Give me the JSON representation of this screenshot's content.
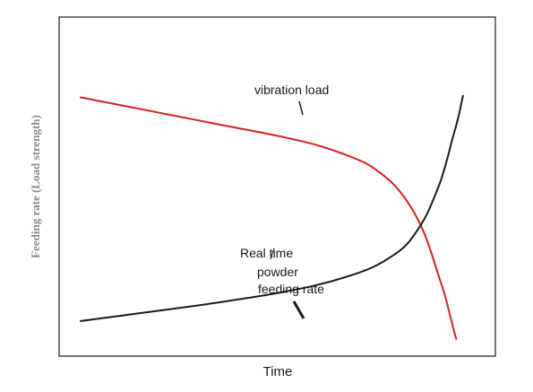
{
  "chart_data": {
    "type": "line",
    "title": "",
    "xlabel": "Time",
    "ylabel": "Feeding rate (Load strength)",
    "xlim": [
      0,
      100
    ],
    "ylim": [
      0,
      100
    ],
    "grid": false,
    "axis_ticks": false,
    "series": [
      {
        "name": "vibration load",
        "color": "#d42020",
        "x": [
          0,
          10,
          20,
          30,
          40,
          50,
          60,
          70,
          75,
          80,
          84,
          87,
          89,
          91,
          92.5,
          93.5,
          94.2,
          94.8,
          95.3
        ],
        "y": [
          79.5,
          77,
          74.5,
          72,
          69.5,
          67,
          64,
          59.5,
          56,
          50.5,
          43.5,
          36,
          29,
          21,
          15,
          10,
          6.5,
          3.5,
          1.2
        ]
      },
      {
        "name": "Real time powder feeding rate",
        "color": "#1a1a1a",
        "x": [
          0,
          10,
          20,
          30,
          40,
          50,
          60,
          70,
          75,
          80,
          83,
          86,
          88,
          90,
          91.5,
          93,
          94.2,
          95.2,
          96,
          96.6,
          97
        ],
        "y": [
          7,
          8.7,
          10.4,
          12.1,
          14,
          16.1,
          18.7,
          22.4,
          25,
          28.9,
          32.2,
          37.5,
          42,
          48,
          53,
          59.5,
          65.5,
          70,
          74,
          77.5,
          80
        ]
      }
    ],
    "annotations": [
      {
        "text": "vibration load",
        "series": 0
      },
      {
        "text": "Real time",
        "series": 1
      },
      {
        "text": "powder",
        "series": 1
      },
      {
        "text": "feeding rate",
        "series": 1
      }
    ]
  }
}
